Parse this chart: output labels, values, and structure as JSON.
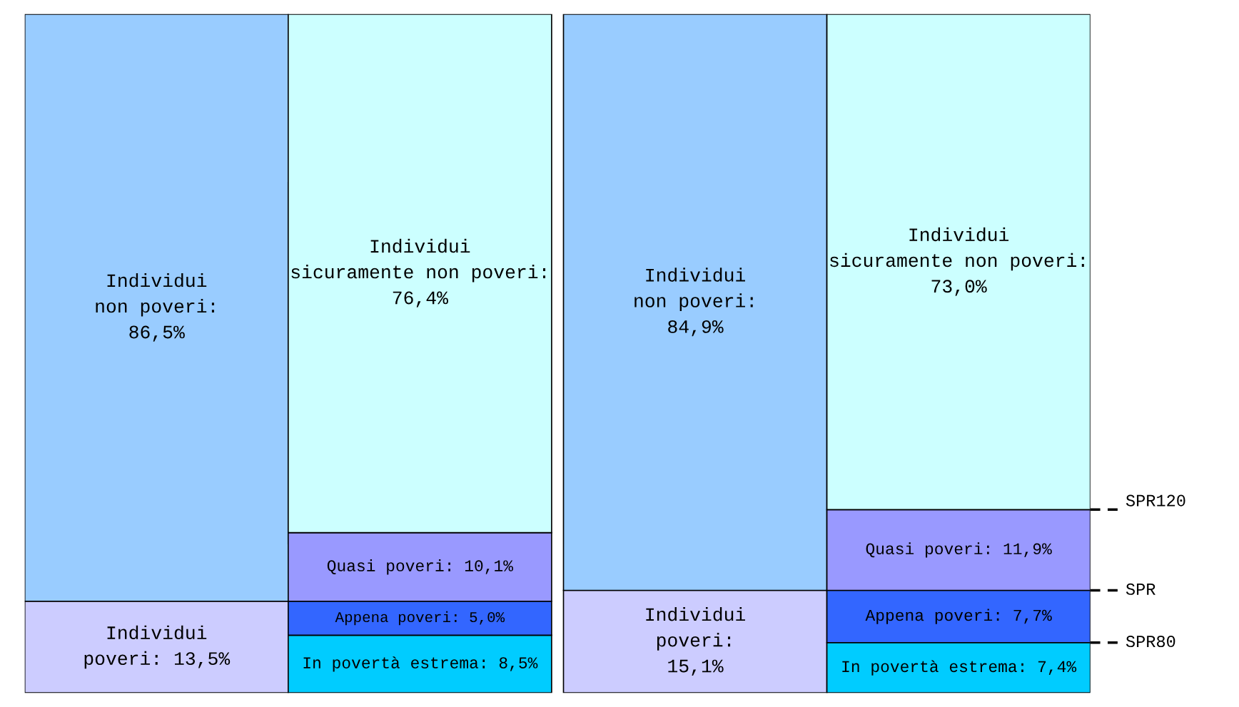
{
  "chart_data": {
    "type": "bar",
    "stacked": true,
    "categories": [
      null,
      null,
      null,
      null
    ],
    "ylim": [
      0,
      100
    ],
    "series": [
      {
        "color": "#ccccff",
        "values": [
          13.5,
          null,
          15.1,
          null
        ],
        "value_labels": [
          "Individui\npoveri: 13,5%",
          null,
          "Individui\npoveri:\n15,1%",
          null
        ]
      },
      {
        "color": "#99ccff",
        "values": [
          86.5,
          null,
          84.9,
          null
        ],
        "value_labels": [
          "Individui\nnon poveri:\n86,5%",
          null,
          "Individui\nnon poveri:\n84,9%",
          null
        ]
      },
      {
        "color": "#00ccff",
        "values": [
          null,
          8.5,
          null,
          7.4
        ],
        "value_labels": [
          null,
          "In povertà estrema: 8,5%",
          null,
          "In povertà estrema: 7,4%"
        ]
      },
      {
        "color": "#3366ff",
        "values": [
          null,
          5.0,
          null,
          7.7
        ],
        "value_labels": [
          null,
          "Appena poveri: 5,0%",
          null,
          "Appena poveri: 7,7%"
        ]
      },
      {
        "color": "#9999ff",
        "values": [
          null,
          10.1,
          null,
          11.9
        ],
        "value_labels": [
          null,
          "Quasi poveri: 10,1%",
          null,
          "Quasi poveri: 11,9%"
        ]
      },
      {
        "color": "#ccffff",
        "values": [
          null,
          76.4,
          null,
          73.0
        ],
        "value_labels": [
          null,
          "Individui\nsicuramente non poveri:\n76,4%",
          null,
          "Individui\nsicuramente non poveri:\n73,0%"
        ]
      }
    ],
    "ref_lines": [
      {
        "axis": "y",
        "value": 27.0,
        "label": "SPR120",
        "line_style": "dashed"
      },
      {
        "axis": "y",
        "value": 15.1,
        "label": "SPR",
        "line_style": "dashed"
      },
      {
        "axis": "y",
        "value": 7.4,
        "label": "SPR80",
        "line_style": "dashed"
      }
    ]
  }
}
